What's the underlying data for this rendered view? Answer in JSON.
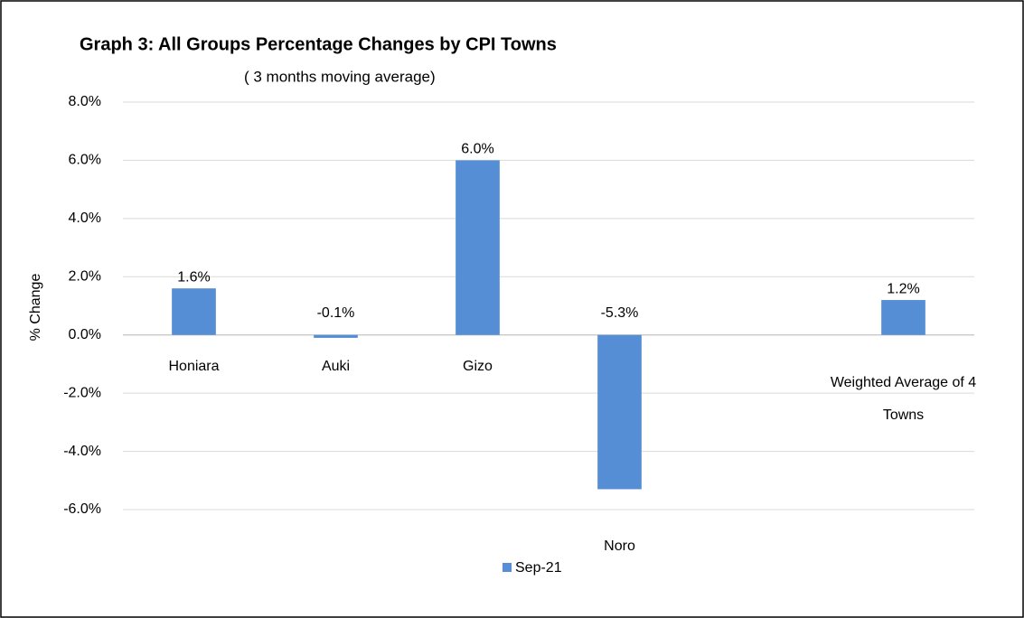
{
  "chart_data": {
    "type": "bar",
    "title": "Graph 3: All Groups Percentage Changes by CPI Towns",
    "subtitle": "( 3 months moving average)",
    "y_label": "% Change",
    "categories": [
      "Honiara",
      "Auki",
      "Gizo",
      "Noro",
      null,
      "Weighted Average of 4 Towns"
    ],
    "series": [
      {
        "name": "Sep-21",
        "color": "#558ed5",
        "values": [
          1.6,
          -0.1,
          6.0,
          -5.3,
          null,
          1.2
        ],
        "value_labels": [
          "1.6%",
          "-0.1%",
          "6.0%",
          "-5.3%",
          null,
          "1.2%"
        ]
      }
    ],
    "ylim": [
      -6,
      8
    ],
    "yticks": [
      {
        "value": -6,
        "label": "-6.0%"
      },
      {
        "value": -4,
        "label": "-4.0%"
      },
      {
        "value": -2,
        "label": "-2.0%"
      },
      {
        "value": 0,
        "label": "0.0%"
      },
      {
        "value": 2,
        "label": "2.0%"
      },
      {
        "value": 4,
        "label": "4.0%"
      },
      {
        "value": 6,
        "label": "6.0%"
      },
      {
        "value": 8,
        "label": "8.0%"
      }
    ],
    "grid": true,
    "legend": "bottom"
  }
}
